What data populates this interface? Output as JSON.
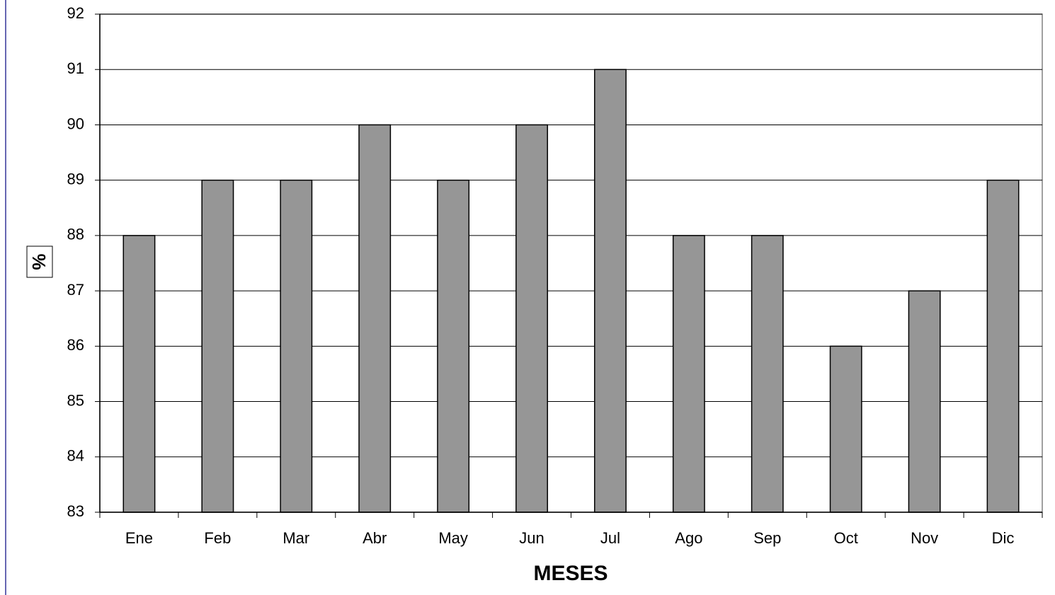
{
  "chart_data": {
    "type": "bar",
    "x_label": "MESES",
    "y_label": "%",
    "categories": [
      "Ene",
      "Feb",
      "Mar",
      "Abr",
      "May",
      "Jun",
      "Jul",
      "Ago",
      "Sep",
      "Oct",
      "Nov",
      "Dic"
    ],
    "values": [
      88,
      89,
      89,
      90,
      89,
      90,
      91,
      88,
      88,
      86,
      87,
      89
    ],
    "color": "#969696",
    "ylim": [
      83,
      92
    ],
    "yticks": [
      83,
      84,
      85,
      86,
      87,
      88,
      89,
      90,
      91,
      92
    ],
    "grid": true
  }
}
